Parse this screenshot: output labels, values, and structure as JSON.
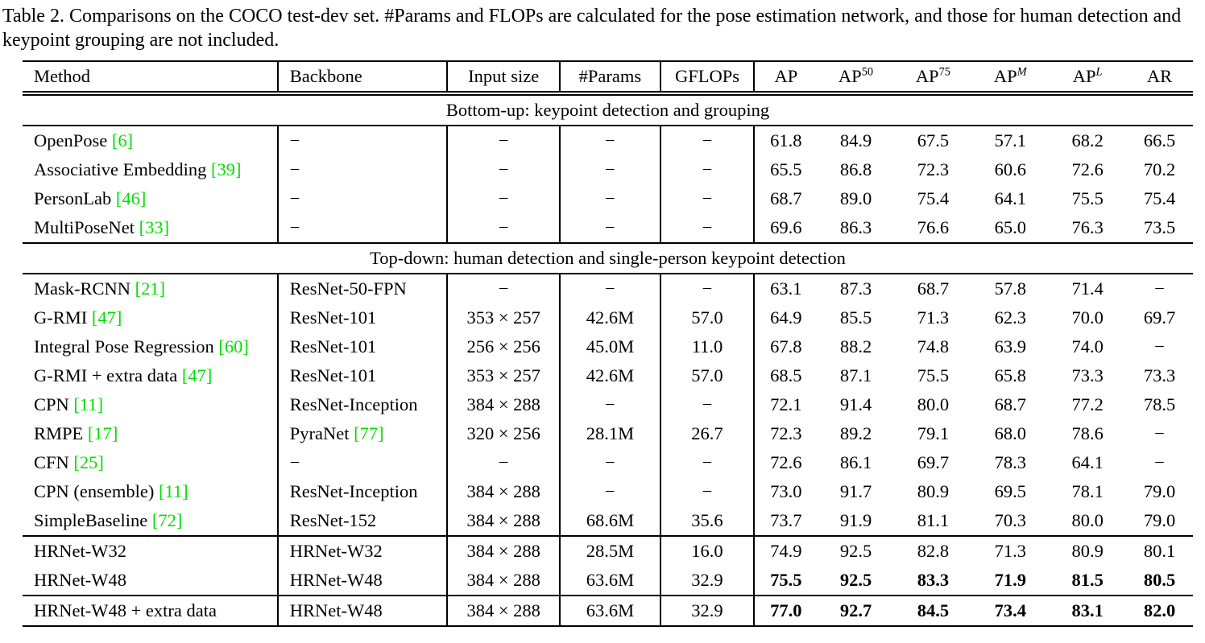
{
  "caption": "Table 2. Comparisons on the COCO test-dev set. #Params and FLOPs are calculated for the pose estimation network, and those for human detection and keypoint grouping are not included.",
  "colors": {
    "citation": "#00e000"
  },
  "table": {
    "columns": [
      "Method",
      "Backbone",
      "Input size",
      "#Params",
      "GFLOPs",
      "AP",
      "AP^50",
      "AP^75",
      "AP^M",
      "AP^L",
      "AR"
    ],
    "sections": [
      {
        "header": "Bottom-up: keypoint detection and grouping",
        "rows": [
          {
            "cells": [
              "OpenPose [6]",
              "−",
              "−",
              "−",
              "−",
              "61.8",
              "84.9",
              "67.5",
              "57.1",
              "68.2",
              "66.5"
            ]
          },
          {
            "cells": [
              "Associative Embedding [39]",
              "−",
              "−",
              "−",
              "−",
              "65.5",
              "86.8",
              "72.3",
              "60.6",
              "72.6",
              "70.2"
            ]
          },
          {
            "cells": [
              "PersonLab [46]",
              "−",
              "−",
              "−",
              "−",
              "68.7",
              "89.0",
              "75.4",
              "64.1",
              "75.5",
              "75.4"
            ]
          },
          {
            "cells": [
              "MultiPoseNet [33]",
              "−",
              "−",
              "−",
              "−",
              "69.6",
              "86.3",
              "76.6",
              "65.0",
              "76.3",
              "73.5"
            ]
          }
        ]
      },
      {
        "header": "Top-down: human detection and single-person keypoint detection",
        "rows": [
          {
            "cells": [
              "Mask-RCNN [21]",
              "ResNet-50-FPN",
              "−",
              "−",
              "−",
              "63.1",
              "87.3",
              "68.7",
              "57.8",
              "71.4",
              "−"
            ]
          },
          {
            "cells": [
              "G-RMI [47]",
              "ResNet-101",
              "353 × 257",
              "42.6M",
              "57.0",
              "64.9",
              "85.5",
              "71.3",
              "62.3",
              "70.0",
              "69.7"
            ]
          },
          {
            "cells": [
              "Integral Pose Regression [60]",
              "ResNet-101",
              "256 × 256",
              "45.0M",
              "11.0",
              "67.8",
              "88.2",
              "74.8",
              "63.9",
              "74.0",
              "−"
            ]
          },
          {
            "cells": [
              "G-RMI + extra data [47]",
              "ResNet-101",
              "353 × 257",
              "42.6M",
              "57.0",
              "68.5",
              "87.1",
              "75.5",
              "65.8",
              "73.3",
              "73.3"
            ]
          },
          {
            "cells": [
              "CPN [11]",
              "ResNet-Inception",
              "384 × 288",
              "−",
              "−",
              "72.1",
              "91.4",
              "80.0",
              "68.7",
              "77.2",
              "78.5"
            ]
          },
          {
            "cells": [
              "RMPE [17]",
              "PyraNet [77]",
              "320 × 256",
              "28.1M",
              "26.7",
              "72.3",
              "89.2",
              "79.1",
              "68.0",
              "78.6",
              "−"
            ]
          },
          {
            "cells": [
              "CFN [25]",
              "−",
              "−",
              "−",
              "−",
              "72.6",
              "86.1",
              "69.7",
              "78.3",
              "64.1",
              "−"
            ]
          },
          {
            "cells": [
              "CPN (ensemble) [11]",
              "ResNet-Inception",
              "384 × 288",
              "−",
              "−",
              "73.0",
              "91.7",
              "80.9",
              "69.5",
              "78.1",
              "79.0"
            ]
          },
          {
            "cells": [
              "SimpleBaseline [72]",
              "ResNet-152",
              "384 × 288",
              "68.6M",
              "35.6",
              "73.7",
              "91.9",
              "81.1",
              "70.3",
              "80.0",
              "79.0"
            ]
          }
        ]
      },
      {
        "header": null,
        "rows": [
          {
            "cells": [
              "HRNet-W32",
              "HRNet-W32",
              "384 × 288",
              "28.5M",
              "16.0",
              "74.9",
              "92.5",
              "82.8",
              "71.3",
              "80.9",
              "80.1"
            ]
          },
          {
            "cells": [
              "HRNet-W48",
              "HRNet-W48",
              "384 × 288",
              "63.6M",
              "32.9",
              "75.5",
              "92.5",
              "83.3",
              "71.9",
              "81.5",
              "80.5"
            ],
            "bold_metrics": true
          }
        ]
      },
      {
        "header": null,
        "rows": [
          {
            "cells": [
              "HRNet-W48 + extra data",
              "HRNet-W48",
              "384 × 288",
              "63.6M",
              "32.9",
              "77.0",
              "92.7",
              "84.5",
              "73.4",
              "83.1",
              "82.0"
            ],
            "bold_metrics": true
          }
        ]
      }
    ]
  }
}
